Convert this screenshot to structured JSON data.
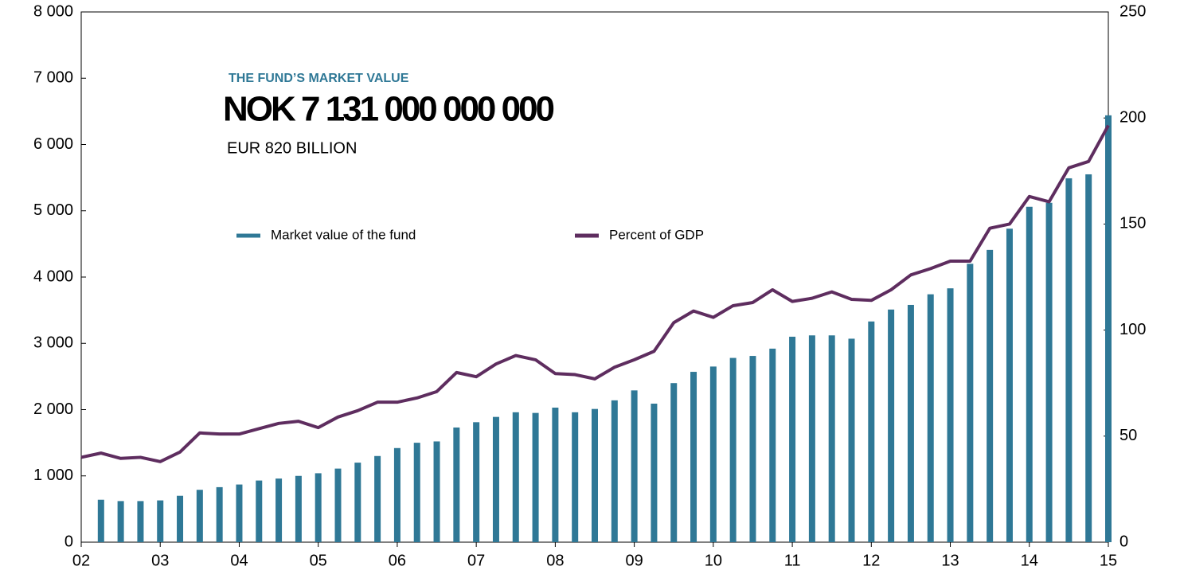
{
  "chart_data": {
    "type": "bar-line",
    "kicker": "THE FUND’S MARKET VALUE",
    "title": "NOK  7 131 000  000 000",
    "subtitle": "EUR 820 BILLION",
    "xlim": [
      2002,
      2015
    ],
    "xticks": [
      {
        "value": 2002,
        "label": "02"
      },
      {
        "value": 2003,
        "label": "03"
      },
      {
        "value": 2004,
        "label": "04"
      },
      {
        "value": 2005,
        "label": "05"
      },
      {
        "value": 2006,
        "label": "06"
      },
      {
        "value": 2007,
        "label": "07"
      },
      {
        "value": 2008,
        "label": "08"
      },
      {
        "value": 2009,
        "label": "09"
      },
      {
        "value": 2010,
        "label": "10"
      },
      {
        "value": 2011,
        "label": "11"
      },
      {
        "value": 2012,
        "label": "12"
      },
      {
        "value": 2013,
        "label": "13"
      },
      {
        "value": 2014,
        "label": "14"
      },
      {
        "value": 2015,
        "label": "15"
      }
    ],
    "ylim": [
      0,
      8000
    ],
    "yticks": [
      0,
      {
        "value": 1000,
        "label": "1 000"
      },
      {
        "value": 2000,
        "label": "2 000"
      },
      {
        "value": 3000,
        "label": "3 000"
      },
      {
        "value": 4000,
        "label": "4 000"
      },
      {
        "value": 5000,
        "label": "5 000"
      },
      {
        "value": 6000,
        "label": "6 000"
      },
      {
        "value": 7000,
        "label": "7 000"
      },
      {
        "value": 8000,
        "label": "8 000"
      }
    ],
    "y2lim": [
      0,
      250
    ],
    "y2ticks": [
      0,
      50,
      100,
      150,
      200,
      250
    ],
    "series": [
      {
        "name": "Market value of the fund",
        "type": "bar",
        "color": "#2f7896",
        "x": [
          2002.25,
          2002.5,
          2002.75,
          2003,
          2003.25,
          2003.5,
          2003.75,
          2004,
          2004.25,
          2004.5,
          2004.75,
          2005,
          2005.25,
          2005.5,
          2005.75,
          2006,
          2006.25,
          2006.5,
          2006.75,
          2007,
          2007.25,
          2007.5,
          2007.75,
          2008,
          2008.25,
          2008.5,
          2008.75,
          2009,
          2009.25,
          2009.5,
          2009.75,
          2010,
          2010.25,
          2010.5,
          2010.75,
          2011,
          2011.25,
          2011.5,
          2011.75,
          2012,
          2012.25,
          2012.5,
          2012.75,
          2013,
          2013.25,
          2013.5,
          2013.75,
          2014,
          2014.25,
          2014.5,
          2014.75,
          2015
        ],
        "values": [
          640,
          620,
          620,
          630,
          700,
          790,
          830,
          870,
          930,
          960,
          1000,
          1040,
          1110,
          1200,
          1300,
          1420,
          1500,
          1520,
          1730,
          1810,
          1890,
          1960,
          1950,
          2030,
          1960,
          2010,
          2140,
          2290,
          2090,
          2400,
          2570,
          2650,
          2780,
          2810,
          2920,
          3100,
          3120,
          3120,
          3070,
          3330,
          3510,
          3580,
          3740,
          3830,
          4200,
          4410,
          4730,
          5060,
          5120,
          5490,
          5550,
          6440
        ]
      },
      {
        "name": "Percent of GDP",
        "type": "line",
        "axis": "y2",
        "color": "#5e2d5f",
        "x": [
          2002,
          2002.25,
          2002.5,
          2002.75,
          2003,
          2003.25,
          2003.5,
          2003.75,
          2004,
          2004.25,
          2004.5,
          2004.75,
          2005,
          2005.25,
          2005.5,
          2005.75,
          2006,
          2006.25,
          2006.5,
          2006.75,
          2007,
          2007.25,
          2007.5,
          2007.75,
          2008,
          2008.25,
          2008.5,
          2008.75,
          2009,
          2009.25,
          2009.5,
          2009.75,
          2010,
          2010.25,
          2010.5,
          2010.75,
          2011,
          2011.25,
          2011.5,
          2011.75,
          2012,
          2012.25,
          2012.5,
          2012.75,
          2013,
          2013.25,
          2013.5,
          2013.75,
          2014,
          2014.25,
          2014.5,
          2014.75,
          2015
        ],
        "values": [
          40,
          42,
          39.5,
          40,
          38,
          42.5,
          51.5,
          51,
          51,
          53.5,
          56,
          57,
          54,
          59,
          62,
          66,
          66,
          68,
          71,
          80,
          78,
          84,
          88,
          86,
          79.5,
          79,
          77,
          82.5,
          86,
          90,
          103.5,
          109,
          106,
          111.5,
          113,
          119,
          113.5,
          115,
          118,
          114.5,
          114,
          119,
          126,
          129,
          132.5,
          132.5,
          148,
          150,
          163,
          160.5,
          176.5,
          179.5,
          196.5
        ]
      }
    ]
  }
}
